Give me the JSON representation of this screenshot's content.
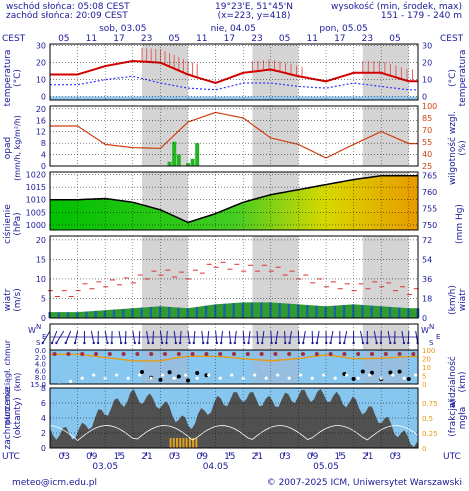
{
  "header": {
    "sunrise": "wschód słońca: 05:08 CEST",
    "sunset": "zachód słońca: 20:09 CEST",
    "coords": "19°23'E, 51°45'N",
    "grid": "(x=223, y=418)",
    "elevation_title": "wysokość (min, środek, max)",
    "elevation_values": "151 - 179 - 240 m",
    "tz_left": "CEST",
    "tz_right": "CEST",
    "top_days": [
      "sob, 03.05",
      "nie, 04.05",
      "pon, 05.05"
    ],
    "top_hours": [
      "05",
      "11",
      "17",
      "23",
      "05",
      "11",
      "17",
      "23",
      "05",
      "11",
      "17",
      "23",
      "05"
    ]
  },
  "footer": {
    "tz": "UTC",
    "hours": [
      "03",
      "09",
      "15",
      "21",
      "03",
      "09",
      "15",
      "21",
      "03",
      "09",
      "15",
      "21",
      "03"
    ],
    "dates": [
      "03.05",
      "04.05",
      "05.05"
    ],
    "email": "meteo@icm.edu.pl",
    "copyright": "© 2007-2025 ICM, Uniwersytet Warszawski"
  },
  "colors": {
    "label": "#1a1a99",
    "grid": "#000000",
    "night_band": "#d4d4d4",
    "temp_max": "#d40000",
    "temp_dew": "#3333ff",
    "pressure_line": "#000000",
    "humidity_line": "#d04010",
    "precip_bar": "#22b522",
    "wind_bar": "#2e9c2e",
    "wind_gust": "#e03030",
    "cloud_fill": "#505050",
    "fog_fill": "#e0a020",
    "sky_blue": "#87c6ee"
  },
  "chart_data": [
    {
      "type": "line",
      "panel": "temperature",
      "ylabel_left": "temperatura",
      "unit_left": "(°C)",
      "ylabel_right": "temperatura",
      "unit_right": "(°C)",
      "x_hours": [
        0,
        6,
        12,
        18,
        24,
        30,
        36,
        42,
        48,
        54,
        60,
        66,
        72
      ],
      "ylim": [
        -2,
        31
      ],
      "yticks": [
        0,
        10,
        20,
        30
      ],
      "series": [
        {
          "values": [
            13,
            18,
            21,
            20,
            13,
            8,
            14,
            16,
            12,
            9,
            14,
            14,
            9
          ]
        },
        {
          "values": [
            7,
            10,
            12,
            8,
            5,
            4,
            8,
            8,
            6,
            5,
            8,
            6,
            4
          ]
        }
      ]
    },
    {
      "type": "bar",
      "panel": "precipitation",
      "ylabel_left": "opad",
      "unit_left": "(mm/h, kg/m²/h)",
      "ylabel_right": "wilgotność wzgl.",
      "unit_right": "(%)",
      "ylim": [
        0,
        21
      ],
      "yticks": [
        0,
        4,
        8,
        12,
        16,
        20
      ],
      "yticks_right": [
        25,
        40,
        55,
        70,
        85,
        100
      ],
      "precip_hours": [
        20,
        21,
        22,
        24,
        25,
        26
      ],
      "precip_values": [
        1.5,
        8.5,
        4,
        1,
        2.5,
        8
      ],
      "humidity_hours": [
        0,
        6,
        12,
        18,
        24,
        30,
        36,
        42,
        48,
        54,
        60,
        66,
        72
      ],
      "humidity_values": [
        75,
        52,
        48,
        47,
        80,
        92,
        85,
        60,
        52,
        35,
        52,
        68,
        53
      ]
    },
    {
      "type": "area",
      "panel": "pressure",
      "ylabel_left": "ciśnienie",
      "unit_left": "(hPa)",
      "unit_right": "(mm Hg)",
      "ylim": [
        998,
        1021
      ],
      "yticks": [
        1000,
        1005,
        1010,
        1015,
        1020
      ],
      "yticks_right": [
        750,
        755,
        760,
        765
      ],
      "x_hours": [
        0,
        6,
        12,
        18,
        24,
        30,
        36,
        42,
        48,
        54,
        60,
        66,
        72
      ],
      "values": [
        1010,
        1010.5,
        1009,
        1006,
        1001,
        1004.5,
        1009,
        1012,
        1014,
        1016,
        1018,
        1019.5,
        1019.5
      ]
    },
    {
      "type": "bar",
      "panel": "wind",
      "ylabel_left": "wiatr",
      "unit_left": "(m/s)",
      "ylabel_right": "wiatr",
      "unit_right": "(km/h)",
      "ylim": [
        0,
        21
      ],
      "yticks": [
        0,
        5,
        10,
        15,
        20
      ],
      "yticks_right": [
        0,
        18,
        36,
        54,
        72
      ],
      "wind_hours": [
        0,
        6,
        12,
        18,
        24,
        30,
        36,
        42,
        48,
        54,
        60,
        66,
        72
      ],
      "wind_values": [
        1.5,
        2,
        2.5,
        3,
        2.5,
        3.5,
        4,
        4,
        3.5,
        3,
        3.5,
        3,
        2.5
      ],
      "gust_values": [
        8,
        9,
        10,
        12,
        11,
        14,
        13,
        13,
        11,
        9,
        8,
        9,
        7
      ]
    },
    {
      "type": "scatter",
      "panel": "visibility",
      "ylabel_left": "pion. rozciągł. chmur",
      "unit_left": "(km)",
      "ylabel_right": "widzialność",
      "unit_right": "(km)",
      "ylim": [
        0,
        15
      ],
      "yticks": [
        "0.0",
        "2.0",
        "4.0",
        "6.0",
        "8.0",
        "15.0"
      ],
      "yticks_right": [
        0,
        5,
        10,
        20,
        100
      ],
      "visibility_hours": [
        0,
        6,
        12,
        18,
        24,
        30,
        36,
        42,
        48,
        54,
        60,
        66,
        72
      ],
      "visibility_values": [
        55,
        35,
        22,
        22,
        42,
        42,
        30,
        22,
        30,
        50,
        30,
        32,
        40
      ]
    },
    {
      "type": "area",
      "panel": "clouds",
      "ylabel_left": "zachmurzenie",
      "unit_left": "(oktanty)",
      "ylabel_right": "(frakcja)",
      "unit_right": "mgła",
      "ylim": [
        0,
        8
      ],
      "yticks": [
        0,
        2,
        4,
        6,
        8
      ],
      "yticks_right": [
        "0",
        "0.25",
        "0.5",
        "0.75"
      ],
      "x_hours": [
        0,
        6,
        12,
        18,
        24,
        30,
        36,
        42,
        48,
        54,
        60,
        66,
        72
      ],
      "values": [
        2,
        5,
        7,
        6,
        3,
        6,
        7,
        6,
        7,
        7,
        6,
        4,
        1
      ]
    }
  ]
}
